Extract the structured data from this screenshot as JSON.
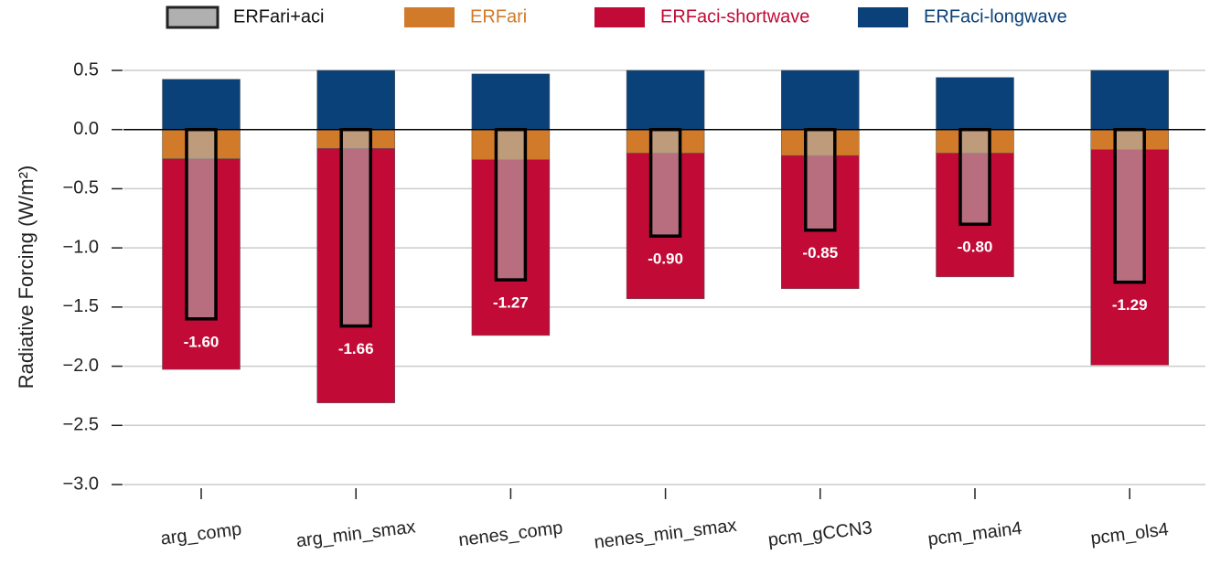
{
  "chart_data": {
    "type": "bar",
    "y_label": "Radiative Forcing (W/m²)",
    "categories": [
      "arg_comp",
      "arg_min_smax",
      "nenes_comp",
      "nenes_min_smax",
      "pcm_gCCN3",
      "pcm_main4",
      "pcm_ols4"
    ],
    "series": [
      {
        "name": "ERFari+aci",
        "color": "#b0b0b0",
        "values": [
          -1.6,
          -1.66,
          -1.27,
          -0.9,
          -0.85,
          -0.8,
          -1.29
        ],
        "value_labels": [
          "-1.60",
          "-1.66",
          "-1.27",
          "-0.90",
          "-0.85",
          "-0.80",
          "-1.29"
        ]
      },
      {
        "name": "ERFari",
        "color": "#d17a2a",
        "values": [
          -0.247,
          -0.16,
          -0.255,
          -0.2,
          -0.22,
          -0.2,
          -0.17
        ]
      },
      {
        "name": "ERFaci-shortwave",
        "color": "#c20a36",
        "values": [
          -1.78,
          -2.15,
          -1.485,
          -1.23,
          -1.125,
          -1.045,
          -1.82
        ]
      },
      {
        "name": "ERFaci-longwave",
        "color": "#0b4179",
        "values": [
          0.425,
          0.5,
          0.47,
          0.5,
          0.5,
          0.44,
          0.5
        ]
      }
    ],
    "ylim": [
      -3.0,
      0.5
    ],
    "yticks": [
      {
        "value": -3.0,
        "label": "−3.0"
      },
      {
        "value": -2.5,
        "label": "−2.5"
      },
      {
        "value": -2.0,
        "label": "−2.0"
      },
      {
        "value": -1.5,
        "label": "−1.5"
      },
      {
        "value": -1.0,
        "label": "−1.0"
      },
      {
        "value": -0.5,
        "label": "−0.5"
      },
      {
        "value": 0.0,
        "label": "0.0"
      },
      0.5
    ],
    "grid": true
  }
}
